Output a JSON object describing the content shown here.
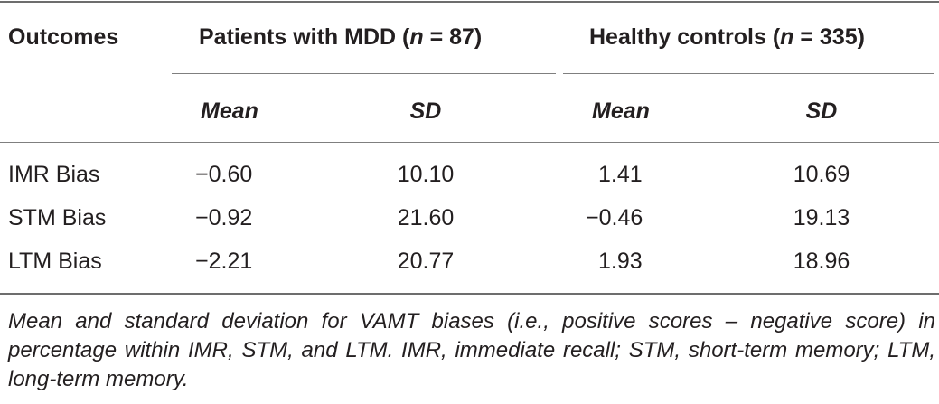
{
  "table": {
    "header": {
      "outcomes": "Outcomes",
      "group1_label": "Patients with MDD (",
      "group1_n_symbol": "n",
      "group1_n_value": " = 87)",
      "group2_label": "Healthy controls (",
      "group2_n_symbol": "n",
      "group2_n_value": " = 335)"
    },
    "subheader": {
      "mean1": "Mean",
      "sd1": "SD",
      "mean2": "Mean",
      "sd2": "SD"
    },
    "rows": [
      {
        "outcome": "IMR Bias",
        "mdd_mean": "−0.60",
        "mdd_sd": "10.10",
        "hc_mean": "1.41",
        "hc_sd": "10.69"
      },
      {
        "outcome": "STM Bias",
        "mdd_mean": "−0.92",
        "mdd_sd": "21.60",
        "hc_mean": "−0.46",
        "hc_sd": "19.13"
      },
      {
        "outcome": "LTM Bias",
        "mdd_mean": "−2.21",
        "mdd_sd": "20.77",
        "hc_mean": "1.93",
        "hc_sd": "18.96"
      }
    ]
  },
  "caption": "Mean and standard deviation for VAMT biases (i.e., positive scores – negative score) in percentage within IMR, STM, and LTM. IMR, immediate recall; STM, short-term memory; LTM, long-term memory."
}
